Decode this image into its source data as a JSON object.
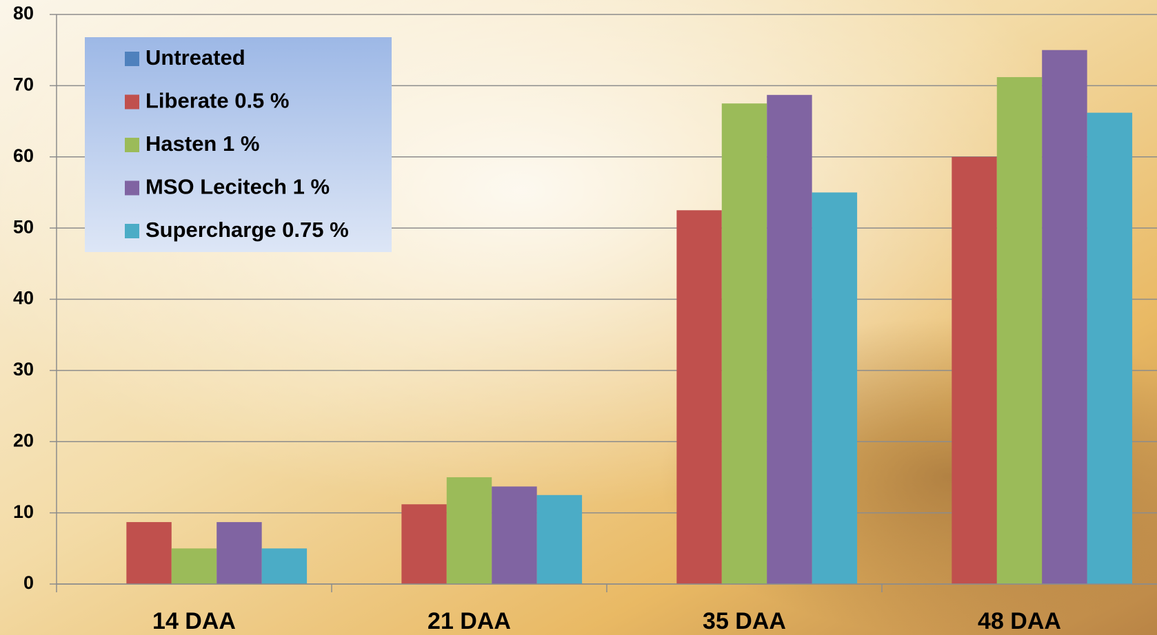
{
  "chart_data": {
    "type": "bar",
    "categories": [
      "14 DAA",
      "21 DAA",
      "35 DAA",
      "48 DAA"
    ],
    "series": [
      {
        "name": "Untreated",
        "color": "#4f81bd",
        "values": [
          0,
          0,
          0,
          0
        ]
      },
      {
        "name": "Liberate 0.5 %",
        "color": "#c0504d",
        "values": [
          8.7,
          11.2,
          52.5,
          60
        ]
      },
      {
        "name": "Hasten 1 %",
        "color": "#9bbb59",
        "values": [
          5,
          15,
          67.5,
          71.2
        ]
      },
      {
        "name": "MSO Lecitech 1 %",
        "color": "#8064a2",
        "values": [
          8.7,
          13.7,
          68.7,
          75
        ]
      },
      {
        "name": "Supercharge 0.75 %",
        "color": "#4bacc6",
        "values": [
          5,
          12.5,
          55,
          66.2
        ]
      }
    ],
    "ylim": [
      0,
      80
    ],
    "yticks": [
      0,
      10,
      20,
      30,
      40,
      50,
      60,
      70,
      80
    ],
    "grid": true,
    "legend": "upper left"
  }
}
